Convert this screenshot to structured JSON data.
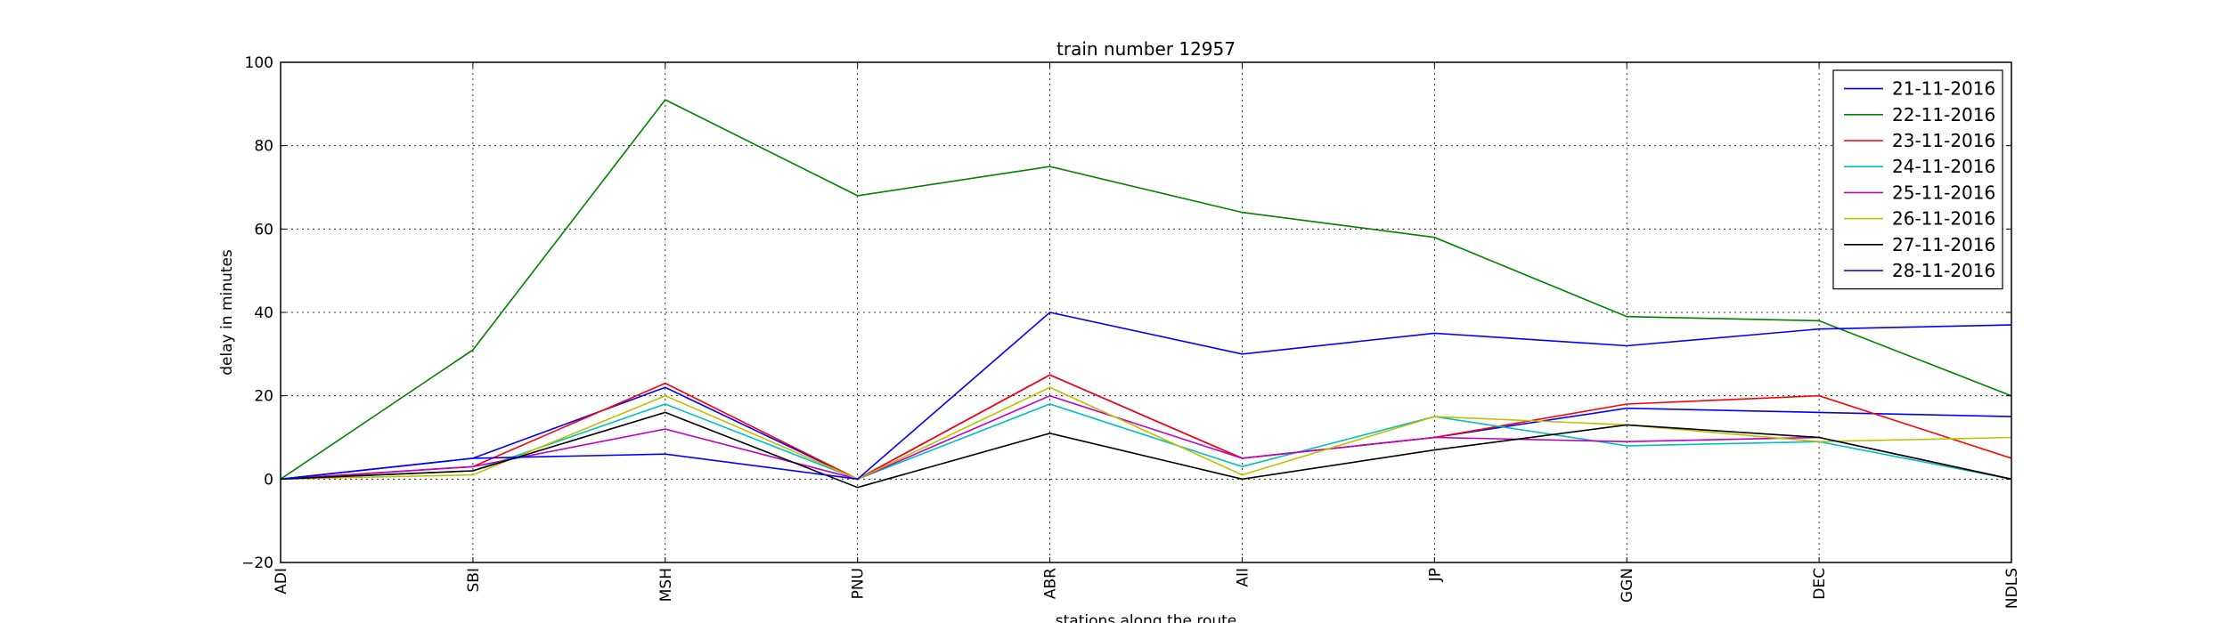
{
  "chart_data": {
    "type": "line",
    "title": "train number 12957",
    "xlabel": "stations along the route",
    "ylabel": "delay in minutes",
    "categories": [
      "ADI",
      "SBI",
      "MSH",
      "PNU",
      "ABR",
      "AII",
      "JP",
      "GGN",
      "DEC",
      "NDLS"
    ],
    "ylim": [
      -20,
      100
    ],
    "yticks": [
      -20,
      0,
      20,
      40,
      60,
      80,
      100
    ],
    "grid": true,
    "legend_position": "top-right",
    "series": [
      {
        "name": "21-11-2016",
        "color": "#0000ff",
        "values": [
          0,
          5,
          22,
          0,
          25,
          5,
          10,
          17,
          16,
          15
        ]
      },
      {
        "name": "22-11-2016",
        "color": "#008000",
        "values": [
          0,
          31,
          91,
          68,
          75,
          64,
          58,
          39,
          38,
          20
        ]
      },
      {
        "name": "23-11-2016",
        "color": "#ff0000",
        "values": [
          0,
          3,
          23,
          0,
          25,
          5,
          10,
          18,
          20,
          5
        ]
      },
      {
        "name": "24-11-2016",
        "color": "#00bfbf",
        "values": [
          0,
          2,
          18,
          0,
          18,
          3,
          15,
          8,
          9,
          0
        ]
      },
      {
        "name": "25-11-2016",
        "color": "#bf00bf",
        "values": [
          0,
          3,
          12,
          0,
          20,
          5,
          10,
          9,
          10,
          0
        ]
      },
      {
        "name": "26-11-2016",
        "color": "#bfbf00",
        "values": [
          0,
          1,
          20,
          0,
          22,
          1,
          15,
          13,
          9,
          10
        ]
      },
      {
        "name": "27-11-2016",
        "color": "#000000",
        "values": [
          0,
          2,
          16,
          -2,
          11,
          0,
          7,
          13,
          10,
          0
        ]
      },
      {
        "name": "28-11-2016",
        "color": "#0000ff",
        "values": [
          0,
          5,
          6,
          0,
          40,
          30,
          35,
          32,
          36,
          37
        ]
      }
    ]
  }
}
